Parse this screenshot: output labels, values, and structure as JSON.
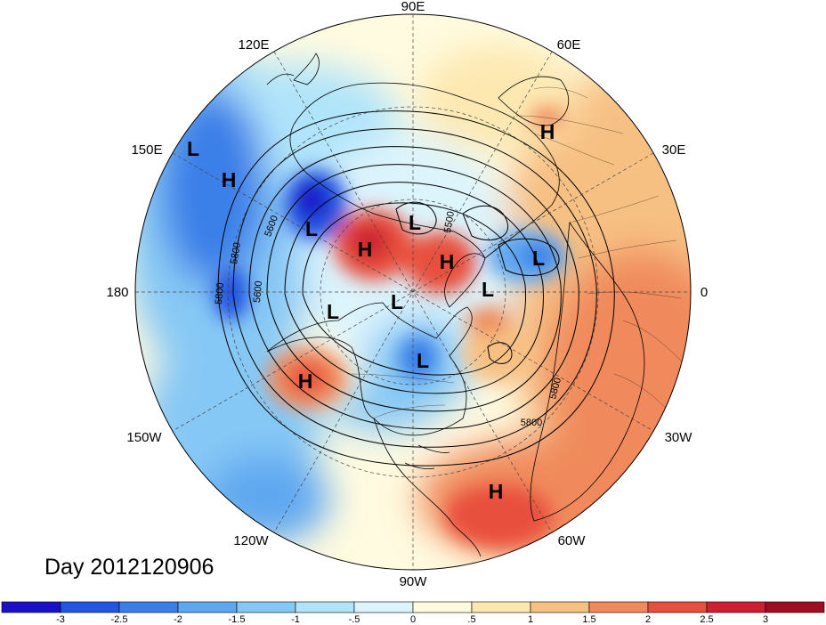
{
  "title": "Day 2012120906",
  "longitude_labels": {
    "lon_90e": "90E",
    "lon_60e": "60E",
    "lon_120e": "120E",
    "lon_30e": "30E",
    "lon_150e": "150E",
    "lon_180": "180",
    "lon_0": "0",
    "lon_150w": "150W",
    "lon_30w": "30W",
    "lon_120w": "120W",
    "lon_60w": "60W",
    "lon_90w": "90W"
  },
  "pressure_centers": [
    {
      "type": "L",
      "label": "L"
    },
    {
      "type": "H",
      "label": "H"
    },
    {
      "type": "L",
      "label": "L"
    },
    {
      "type": "H",
      "label": "H"
    },
    {
      "type": "L",
      "label": "L"
    },
    {
      "type": "H",
      "label": "H"
    },
    {
      "type": "L",
      "label": "L"
    },
    {
      "type": "L",
      "label": "L"
    },
    {
      "type": "L",
      "label": "L"
    },
    {
      "type": "L",
      "label": "L"
    },
    {
      "type": "H",
      "label": "H"
    },
    {
      "type": "L",
      "label": "L"
    },
    {
      "type": "H",
      "label": "H"
    }
  ],
  "contour_labels": {
    "c1": "5500",
    "c2": "5800",
    "c3": "5600",
    "c4": "5800",
    "c5": "5600",
    "c6": "5800",
    "c7": "5800"
  },
  "colorbar": {
    "ticks": [
      "-3",
      "-2.5",
      "-2",
      "-1.5",
      "-1",
      "-.5",
      "0",
      ".5",
      "1",
      "1.5",
      "2",
      "2.5",
      "3"
    ],
    "colors": [
      "#1a10c8",
      "#2255e0",
      "#3a7fe8",
      "#5ea8f0",
      "#86c8f5",
      "#b0e4fa",
      "#dcf4fc",
      "#fffbe0",
      "#fde8b0",
      "#f7c083",
      "#f08a5c",
      "#e8503e",
      "#cc2030",
      "#a00d22"
    ]
  },
  "colors": {
    "land_outline": "#000000",
    "grid": "#333333"
  }
}
